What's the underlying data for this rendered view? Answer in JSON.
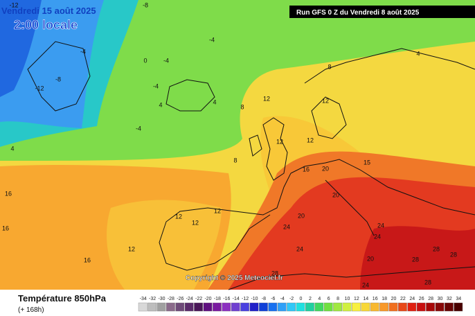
{
  "header": {
    "date": "Vendredi 15 août 2025",
    "time": "2:00 locale",
    "run": "Run GFS 0 Z du Vendredi 8 août 2025",
    "copyright": "Copyright © 2025 Meteociel.fr"
  },
  "legend": {
    "title": "Température 850hPa",
    "lead": "(+ 168h)",
    "ticks": [
      -34,
      -32,
      -30,
      -28,
      -26,
      -24,
      -22,
      -20,
      -18,
      -16,
      -14,
      -12,
      -10,
      -8,
      -6,
      -4,
      -2,
      0,
      2,
      4,
      6,
      8,
      10,
      12,
      14,
      16,
      18,
      20,
      22,
      24,
      26,
      28,
      30,
      32,
      34
    ],
    "colors": [
      "#d8d8d8",
      "#bdbdbd",
      "#a0a0a0",
      "#8a6a8a",
      "#6e4a78",
      "#5a2a6a",
      "#4a1658",
      "#601080",
      "#7a1aa0",
      "#8c30c0",
      "#7040d0",
      "#4a40e0",
      "#2020c8",
      "#1040d8",
      "#1870f0",
      "#30a0f8",
      "#30c8f8",
      "#20e0e0",
      "#20d0a0",
      "#40d860",
      "#70e040",
      "#a0e840",
      "#d0f040",
      "#f8f040",
      "#f8d838",
      "#f8b830",
      "#f89828",
      "#f07020",
      "#e84818",
      "#e02010",
      "#c81010",
      "#a80808",
      "#880808",
      "#680404",
      "#480000"
    ]
  },
  "map": {
    "contour_labels": [
      -12,
      -8,
      -4,
      -8,
      -12,
      -4,
      -4,
      -4,
      -4,
      0,
      4,
      4,
      4,
      4,
      8,
      8,
      8,
      12,
      12,
      12,
      12,
      15,
      16,
      20,
      20,
      20,
      16,
      16,
      16,
      12,
      12,
      12,
      12,
      24,
      24,
      24,
      24,
      24,
      20,
      28,
      28,
      28,
      28,
      28
    ]
  }
}
